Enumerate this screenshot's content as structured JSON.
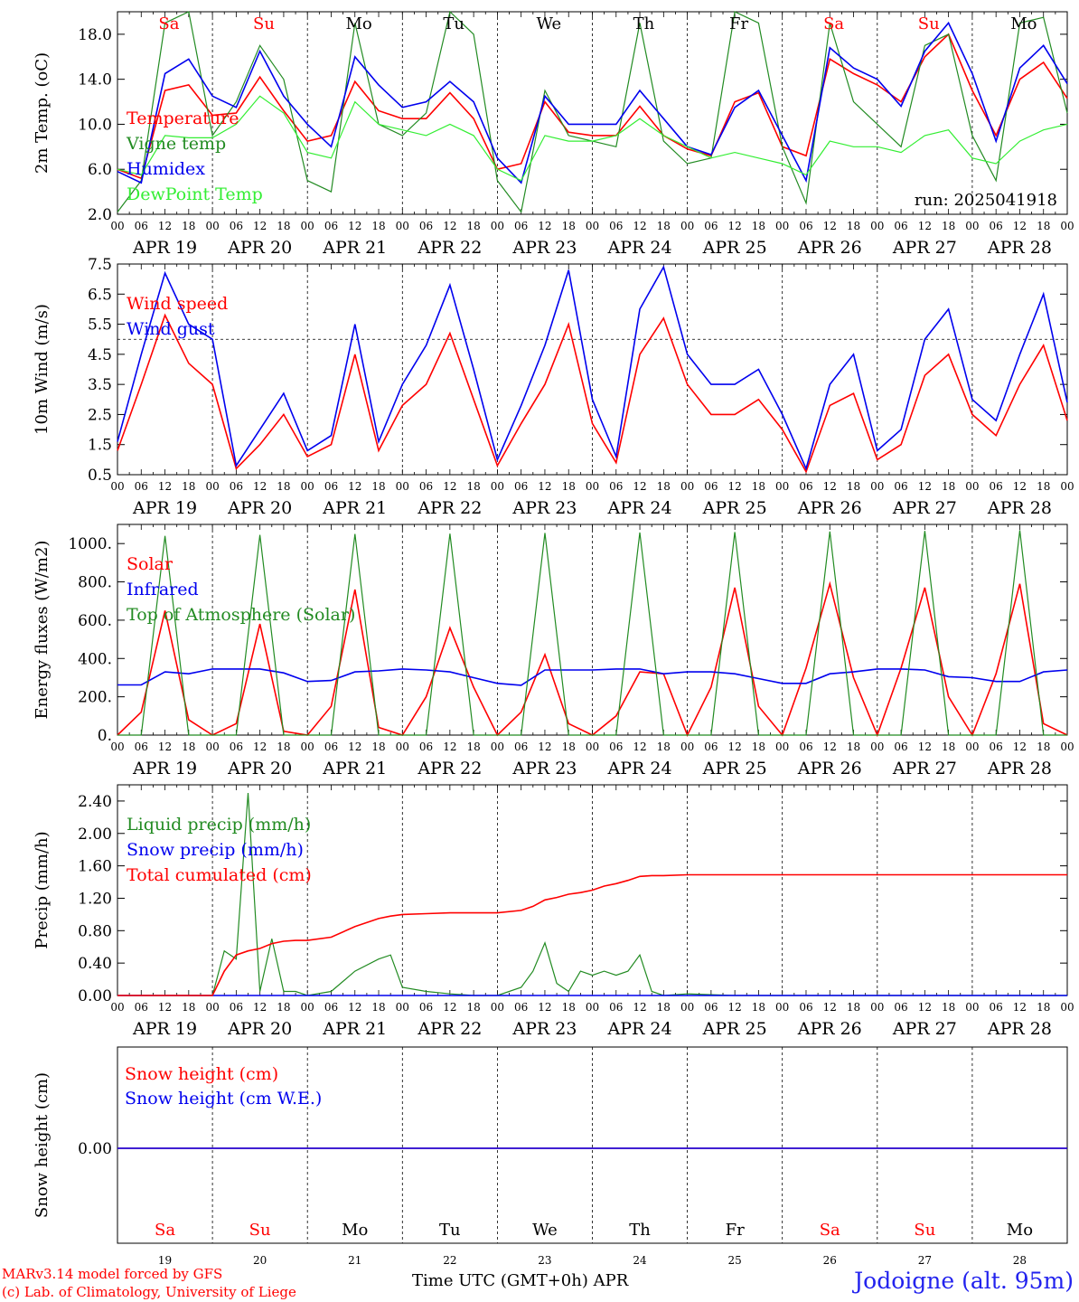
{
  "colors": {
    "red": "#ff0000",
    "green": "#228b22",
    "blue": "#0000ee",
    "lightgreen": "#33ee33",
    "weekend": "#ff0000",
    "weekday": "#000000"
  },
  "days": [
    {
      "abbr": "Sa",
      "date": "APR 19",
      "num": "19",
      "weekend": true
    },
    {
      "abbr": "Su",
      "date": "APR 20",
      "num": "20",
      "weekend": true
    },
    {
      "abbr": "Mo",
      "date": "APR 21",
      "num": "21",
      "weekend": false
    },
    {
      "abbr": "Tu",
      "date": "APR 22",
      "num": "22",
      "weekend": false
    },
    {
      "abbr": "We",
      "date": "APR 23",
      "num": "23",
      "weekend": false
    },
    {
      "abbr": "Th",
      "date": "APR 24",
      "num": "24",
      "weekend": false
    },
    {
      "abbr": "Fr",
      "date": "APR 25",
      "num": "25",
      "weekend": false
    },
    {
      "abbr": "Sa",
      "date": "APR 26",
      "num": "26",
      "weekend": true
    },
    {
      "abbr": "Su",
      "date": "APR 27",
      "num": "27",
      "weekend": true
    },
    {
      "abbr": "Mo",
      "date": "APR 28",
      "num": "28",
      "weekend": false
    }
  ],
  "hour_ticks": [
    "00",
    "06",
    "12",
    "18"
  ],
  "last_hour_tick": "00",
  "footer": {
    "credit_line1": "MARv3.14 model forced by GFS",
    "credit_line2": "(c) Lab. of Climatology, University of Liege",
    "xaxis_title": "Time UTC (GMT+0h) APR",
    "station": "Jodoigne (alt. 95m)"
  },
  "chart_data": [
    {
      "type": "line",
      "ylabel": "2m Temp. (oC)",
      "ylim": [
        2,
        20
      ],
      "yticks": [
        "2.0",
        "6.0",
        "10.0",
        "14.0",
        "18.0"
      ],
      "annotation": "run: 2025041918",
      "x_hours": [
        0,
        6,
        12,
        18,
        24,
        30,
        36,
        42,
        48,
        54,
        60,
        66,
        72,
        78,
        84,
        90,
        96,
        102,
        108,
        114,
        120,
        126,
        132,
        138,
        144,
        150,
        156,
        162,
        168,
        174,
        180,
        186,
        192,
        198,
        204,
        210,
        216,
        222,
        228,
        234,
        240
      ],
      "series": [
        {
          "name": "Temperature",
          "color": "#ff0000",
          "values": [
            6.0,
            5.2,
            13.0,
            13.5,
            10.8,
            11.0,
            14.2,
            11.2,
            8.5,
            9.0,
            13.8,
            11.2,
            10.5,
            10.5,
            12.8,
            10.5,
            6.0,
            6.5,
            12.0,
            9.3,
            9.0,
            9.0,
            11.6,
            9.0,
            7.8,
            7.2,
            12.0,
            12.8,
            8.0,
            7.2,
            15.8,
            14.5,
            13.5,
            12.0,
            16.0,
            18.0,
            13.0,
            9.0,
            14.0,
            15.5,
            12.3
          ]
        },
        {
          "name": "Vigne temp",
          "color": "#228b22",
          "values": [
            2.2,
            5.0,
            19.0,
            20.0,
            9.0,
            12.0,
            17.0,
            14.0,
            5.0,
            4.0,
            19.0,
            10.0,
            9.0,
            11.0,
            20.0,
            18.0,
            5.0,
            2.2,
            13.0,
            9.0,
            8.5,
            8.0,
            19.0,
            8.5,
            6.5,
            7.0,
            20.0,
            19.0,
            8.0,
            3.0,
            19.0,
            12.0,
            10.0,
            8.0,
            17.0,
            18.0,
            9.0,
            5.0,
            19.0,
            19.5,
            11.0
          ]
        },
        {
          "name": "Humidex",
          "color": "#0000ee",
          "values": [
            5.8,
            4.8,
            14.5,
            15.8,
            12.5,
            11.5,
            16.5,
            12.5,
            10.0,
            8.0,
            16.0,
            13.5,
            11.5,
            12.0,
            13.8,
            12.0,
            7.0,
            4.8,
            12.5,
            10.0,
            10.0,
            10.0,
            13.0,
            10.5,
            8.0,
            7.3,
            11.5,
            13.0,
            9.0,
            5.0,
            16.8,
            15.0,
            14.0,
            11.6,
            16.5,
            19.0,
            14.5,
            8.5,
            15.0,
            17.0,
            13.6
          ]
        },
        {
          "name": "DewPoint Temp",
          "color": "#33ee33",
          "values": [
            6.0,
            5.5,
            9.0,
            8.8,
            8.8,
            10.0,
            12.5,
            11.0,
            7.5,
            7.0,
            12.0,
            10.0,
            9.5,
            9.0,
            10.0,
            9.0,
            6.0,
            5.0,
            9.0,
            8.5,
            8.5,
            9.0,
            10.5,
            9.0,
            8.0,
            7.0,
            7.5,
            7.0,
            6.5,
            5.5,
            8.5,
            8.0,
            8.0,
            7.5,
            9.0,
            9.5,
            7.0,
            6.5,
            8.5,
            9.5,
            10.0
          ]
        }
      ]
    },
    {
      "type": "line",
      "ylabel": "10m Wind (m/s)",
      "ylim": [
        0.5,
        7.5
      ],
      "yticks": [
        "0.5",
        "1.5",
        "2.5",
        "3.5",
        "4.5",
        "5.5",
        "6.5",
        "7.5"
      ],
      "reference_line": 5,
      "x_hours": [
        0,
        6,
        12,
        18,
        24,
        30,
        36,
        42,
        48,
        54,
        60,
        66,
        72,
        78,
        84,
        90,
        96,
        102,
        108,
        114,
        120,
        126,
        132,
        138,
        144,
        150,
        156,
        162,
        168,
        174,
        180,
        186,
        192,
        198,
        204,
        210,
        216,
        222,
        228,
        234,
        240
      ],
      "series": [
        {
          "name": "Wind speed",
          "color": "#ff0000",
          "values": [
            1.3,
            3.5,
            5.8,
            4.2,
            3.5,
            0.7,
            1.5,
            2.5,
            1.1,
            1.5,
            4.5,
            1.3,
            2.8,
            3.5,
            5.2,
            3.0,
            0.8,
            2.2,
            3.5,
            5.5,
            2.2,
            0.9,
            4.5,
            5.7,
            3.5,
            2.5,
            2.5,
            3.0,
            2.0,
            0.6,
            2.8,
            3.2,
            1.0,
            1.5,
            3.8,
            4.5,
            2.5,
            1.8,
            3.5,
            4.8,
            2.3
          ]
        },
        {
          "name": "Wind gust",
          "color": "#0000ee",
          "values": [
            1.6,
            4.5,
            7.2,
            5.5,
            5.0,
            0.8,
            2.0,
            3.2,
            1.3,
            1.8,
            5.5,
            1.6,
            3.5,
            4.8,
            6.8,
            4.0,
            1.0,
            2.8,
            4.8,
            7.3,
            3.0,
            1.1,
            6.0,
            7.4,
            4.5,
            3.5,
            3.5,
            4.0,
            2.5,
            0.7,
            3.5,
            4.5,
            1.3,
            2.0,
            5.0,
            6.0,
            3.0,
            2.3,
            4.5,
            6.5,
            2.9
          ]
        }
      ]
    },
    {
      "type": "line",
      "ylabel": "Energy fluxes (W/m2)",
      "ylim": [
        0,
        1100
      ],
      "yticks": [
        "0.",
        "200.",
        "400.",
        "600.",
        "800.",
        "1000."
      ],
      "x_hours": [
        0,
        6,
        12,
        18,
        24,
        30,
        36,
        42,
        48,
        54,
        60,
        66,
        72,
        78,
        84,
        90,
        96,
        102,
        108,
        114,
        120,
        126,
        132,
        138,
        144,
        150,
        156,
        162,
        168,
        174,
        180,
        186,
        192,
        198,
        204,
        210,
        216,
        222,
        228,
        234,
        240
      ],
      "series": [
        {
          "name": "Solar",
          "color": "#ff0000",
          "values": [
            0,
            120,
            650,
            80,
            0,
            60,
            580,
            20,
            0,
            150,
            760,
            40,
            0,
            200,
            560,
            250,
            0,
            120,
            420,
            60,
            0,
            100,
            330,
            320,
            0,
            250,
            770,
            150,
            0,
            350,
            790,
            300,
            0,
            350,
            770,
            200,
            0,
            320,
            790,
            60,
            0
          ]
        },
        {
          "name": "Infrared",
          "color": "#0000ee",
          "values": [
            262,
            262,
            330,
            320,
            345,
            345,
            345,
            325,
            280,
            285,
            330,
            335,
            345,
            340,
            330,
            300,
            270,
            260,
            340,
            340,
            340,
            345,
            345,
            320,
            330,
            330,
            320,
            295,
            270,
            270,
            320,
            330,
            345,
            345,
            340,
            305,
            300,
            280,
            280,
            330,
            340
          ]
        },
        {
          "name": "Top of Atmosphere (Solar)",
          "color": "#228b22",
          "values": [
            0,
            0,
            1040,
            0,
            0,
            0,
            1045,
            0,
            0,
            0,
            1050,
            0,
            0,
            0,
            1052,
            0,
            0,
            0,
            1055,
            0,
            0,
            0,
            1058,
            0,
            0,
            0,
            1060,
            0,
            0,
            0,
            1063,
            0,
            0,
            0,
            1066,
            0,
            0,
            0,
            1070,
            0,
            0
          ]
        }
      ]
    },
    {
      "type": "line",
      "ylabel": "Precip (mm/h)",
      "ylim": [
        0,
        2.6
      ],
      "yticks": [
        "0.00",
        "0.40",
        "0.80",
        "1.20",
        "1.60",
        "2.00",
        "2.40"
      ],
      "x_hours": [
        0,
        6,
        12,
        18,
        24,
        27,
        30,
        33,
        36,
        39,
        42,
        45,
        48,
        54,
        60,
        66,
        69,
        72,
        78,
        84,
        90,
        96,
        102,
        105,
        108,
        111,
        114,
        117,
        120,
        123,
        126,
        129,
        132,
        135,
        138,
        144,
        150,
        156,
        162,
        168,
        174,
        180,
        186,
        192,
        198,
        204,
        210,
        216,
        222,
        228,
        234,
        240
      ],
      "series": [
        {
          "name": "Liquid precip (mm/h)",
          "color": "#228b22",
          "values": [
            0,
            0,
            0,
            0,
            0,
            0.55,
            0.45,
            2.5,
            0.05,
            0.7,
            0.05,
            0.05,
            0,
            0.05,
            0.3,
            0.45,
            0.5,
            0.1,
            0.05,
            0.02,
            0,
            0,
            0.1,
            0.3,
            0.65,
            0.15,
            0.05,
            0.3,
            0.25,
            0.3,
            0.25,
            0.3,
            0.5,
            0.05,
            0,
            0.02,
            0.01,
            0,
            0,
            0,
            0,
            0,
            0,
            0,
            0,
            0,
            0,
            0,
            0,
            0,
            0,
            0
          ]
        },
        {
          "name": "Snow precip (mm/h)",
          "color": "#0000ee",
          "values": [
            0,
            0,
            0,
            0,
            0,
            0,
            0,
            0,
            0,
            0,
            0,
            0,
            0,
            0,
            0,
            0,
            0,
            0,
            0,
            0,
            0,
            0,
            0,
            0,
            0,
            0,
            0,
            0,
            0,
            0,
            0,
            0,
            0,
            0,
            0,
            0,
            0,
            0,
            0,
            0,
            0,
            0,
            0,
            0,
            0,
            0,
            0,
            0,
            0,
            0,
            0,
            0
          ]
        },
        {
          "name": "Total cumulated (cm)",
          "color": "#ff0000",
          "values": [
            0,
            0,
            0,
            0,
            0,
            0.3,
            0.5,
            0.55,
            0.58,
            0.64,
            0.67,
            0.68,
            0.68,
            0.72,
            0.85,
            0.95,
            0.98,
            1.0,
            1.01,
            1.02,
            1.02,
            1.02,
            1.05,
            1.1,
            1.18,
            1.21,
            1.25,
            1.27,
            1.3,
            1.35,
            1.38,
            1.42,
            1.47,
            1.48,
            1.48,
            1.49,
            1.49,
            1.49,
            1.49,
            1.49,
            1.49,
            1.49,
            1.49,
            1.49,
            1.49,
            1.49,
            1.49,
            1.49,
            1.49,
            1.49,
            1.49,
            1.49
          ]
        }
      ]
    },
    {
      "type": "line",
      "ylabel": "Snow height (cm)",
      "yticks": [
        "0.00"
      ],
      "x_hours": [
        0,
        240
      ],
      "series": [
        {
          "name": "Snow height (cm)",
          "color": "#ff0000",
          "values": [
            0,
            0
          ]
        },
        {
          "name": "Snow height (cm W.E.)",
          "color": "#0000ee",
          "values": [
            0,
            0
          ]
        }
      ]
    }
  ]
}
